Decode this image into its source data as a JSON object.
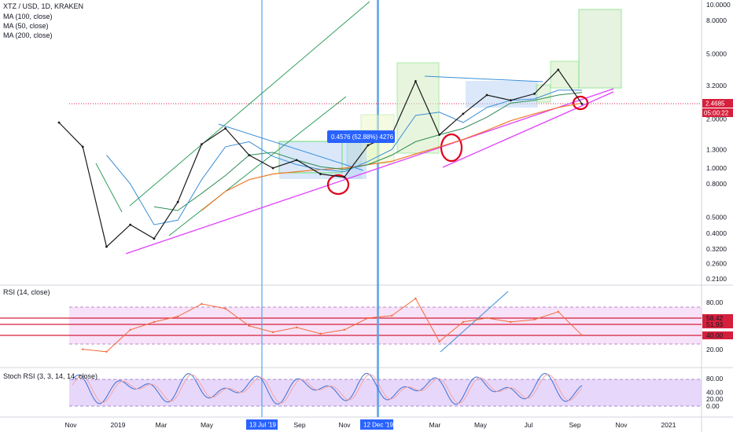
{
  "legends": {
    "symbol": "XTZ / USD, 1D, KRAKEN",
    "ma100": "MA (100, close)",
    "ma50": "MA (50, close)",
    "ma200": "MA (200, close)",
    "rsi": "RSI (14, close)",
    "stoch": "Stoch RSI (3, 3, 14, 14, close)"
  },
  "colors": {
    "price": "#1a1a1a",
    "ma100": "#2e8b57",
    "ma50": "#3a8fd6",
    "ma200": "#f07a2a",
    "trend": "#e040fb",
    "channel": "#2e9e5b",
    "rsi_line": "#f26b3a",
    "stoch_k": "#3a6fd6",
    "stoch_d": "#f5a6a6",
    "rsi_band": "#f3d6f7",
    "stoch_band": "#e1cdf9",
    "red_line": "#d61f3c",
    "vline": "#5aa2e8",
    "label_bg": "#2962ff"
  },
  "axes": {
    "price_ticks": [
      "10.0000",
      "8.0000",
      "5.0000",
      "3.2000",
      "2.0000",
      "1.3000",
      "1.0000",
      "0.8000",
      "0.5000",
      "0.4000",
      "0.3200",
      "0.2600",
      "0.2100"
    ],
    "price_tag": "2.4685",
    "timer_tag": "05:00:22",
    "rsi_ticks": [
      "80.00",
      "60.00",
      "40.00",
      "20.00"
    ],
    "rsi_tags": [
      "58.42",
      "51.93",
      "40.00"
    ],
    "stoch_ticks": [
      "80.00",
      "40.00",
      "20.00",
      "0.00"
    ],
    "x_ticks": [
      "Nov",
      "2019",
      "Mar",
      "May",
      "Sep",
      "Nov",
      "Mar",
      "May",
      "Jul",
      "Sep",
      "Nov",
      "2021"
    ],
    "x_highlight": [
      "13 Jul '19",
      "12 Dec '19"
    ]
  },
  "annotation": {
    "measure_label": "0.4576 (52.88%) 4276"
  },
  "chart_data": {
    "type": "line",
    "title": "XTZ / USD, 1D, KRAKEN",
    "scale": "log",
    "ylim": [
      0.21,
      10.0
    ],
    "x": [
      "2018-11",
      "2018-12",
      "2019-01",
      "2019-02",
      "2019-03",
      "2019-04",
      "2019-05",
      "2019-06",
      "2019-07",
      "2019-08",
      "2019-09",
      "2019-10",
      "2019-11",
      "2019-12",
      "2020-01",
      "2020-02",
      "2020-03",
      "2020-04",
      "2020-05",
      "2020-06",
      "2020-07",
      "2020-08",
      "2020-09"
    ],
    "series": [
      {
        "name": "XTZ / USD",
        "values": [
          1.9,
          1.35,
          0.33,
          0.45,
          0.37,
          0.62,
          1.4,
          1.75,
          1.2,
          1.0,
          1.12,
          0.92,
          0.88,
          1.38,
          1.6,
          3.4,
          1.6,
          2.15,
          2.8,
          2.6,
          2.85,
          4.0,
          2.4685
        ]
      },
      {
        "name": "MA (100, close)",
        "values": [
          null,
          null,
          null,
          null,
          0.58,
          0.55,
          0.7,
          0.9,
          1.2,
          1.25,
          1.12,
          1.02,
          0.98,
          1.05,
          1.2,
          1.45,
          1.6,
          1.75,
          2.05,
          2.5,
          2.6,
          2.8,
          2.9
        ]
      },
      {
        "name": "MA (50, close)",
        "values": [
          null,
          null,
          1.2,
          0.8,
          0.45,
          0.48,
          0.85,
          1.35,
          1.45,
          1.18,
          1.05,
          0.98,
          0.95,
          1.1,
          1.3,
          2.1,
          2.2,
          1.9,
          2.35,
          2.6,
          2.65,
          3.0,
          3.0
        ]
      },
      {
        "name": "MA (200, close)",
        "values": [
          null,
          null,
          null,
          null,
          null,
          null,
          0.55,
          0.72,
          0.85,
          0.92,
          0.95,
          0.98,
          1.0,
          1.05,
          1.1,
          1.22,
          1.35,
          1.5,
          1.7,
          1.95,
          2.15,
          2.35,
          2.5
        ]
      }
    ],
    "rsi": {
      "name": "RSI (14, close)",
      "ylim": [
        0,
        100
      ],
      "levels": [
        58.42,
        51.93,
        40.0
      ],
      "values": [
        null,
        20,
        17,
        45,
        55,
        62,
        78,
        72,
        50,
        42,
        48,
        40,
        45,
        60,
        63,
        85,
        30,
        55,
        60,
        55,
        58,
        68,
        38
      ]
    },
    "stoch_rsi": {
      "name": "Stoch RSI (3, 3, 14, 14, close)",
      "ylim": [
        0,
        100
      ],
      "levels": [
        80,
        20
      ]
    }
  }
}
